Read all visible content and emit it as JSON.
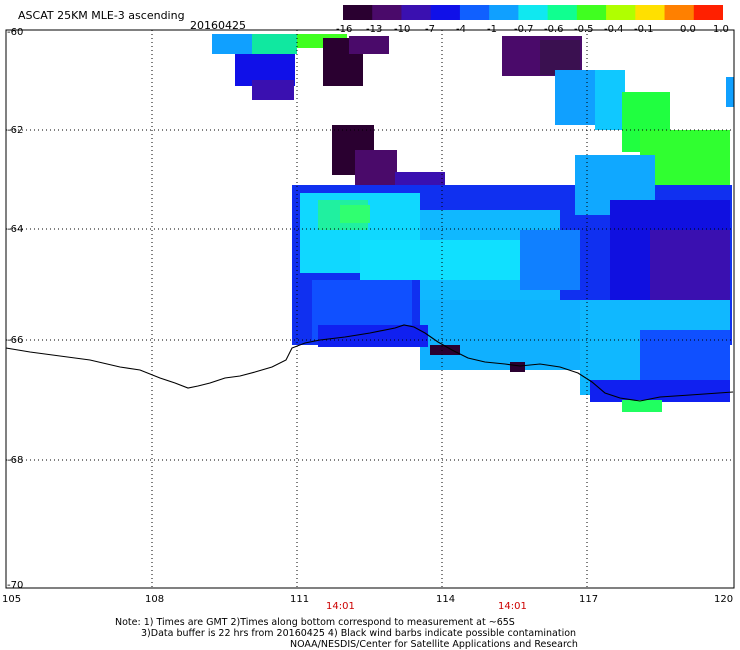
{
  "header": {
    "title": "ASCAT 25KM MLE-3 ascending",
    "date": "20160425"
  },
  "colorbar": {
    "labels": [
      "-16",
      "-13",
      "-10",
      "-7",
      "-4",
      "-1",
      "-0.7",
      "-0.6",
      "-0.5",
      "-0.4",
      "-0.1",
      "0.0",
      "1.0"
    ],
    "colors": [
      "#2a0030",
      "#4a0a6a",
      "#3a10b0",
      "#1010e8",
      "#1060ff",
      "#10a0ff",
      "#10e8f0",
      "#10ff90",
      "#40ff20",
      "#b0ff00",
      "#ffe000",
      "#ff8000",
      "#ff2000"
    ]
  },
  "axes": {
    "lon_labels": [
      "105",
      "108",
      "111",
      "114",
      "117",
      "120"
    ],
    "lat_labels": [
      "-60",
      "-62",
      "-64",
      "-66",
      "-68",
      "-70"
    ]
  },
  "times": [
    "14:01",
    "14:01"
  ],
  "notes": {
    "line1": "Note: 1) Times are GMT 2)Times along bottom correspond to measurement at ~65S",
    "line2": "3)Data buffer is 22 hrs from 20160425 4) Black wind barbs indicate possible contamination",
    "line3": "NOAA/NESDIS/Center for Satellite Applications and Research"
  }
}
